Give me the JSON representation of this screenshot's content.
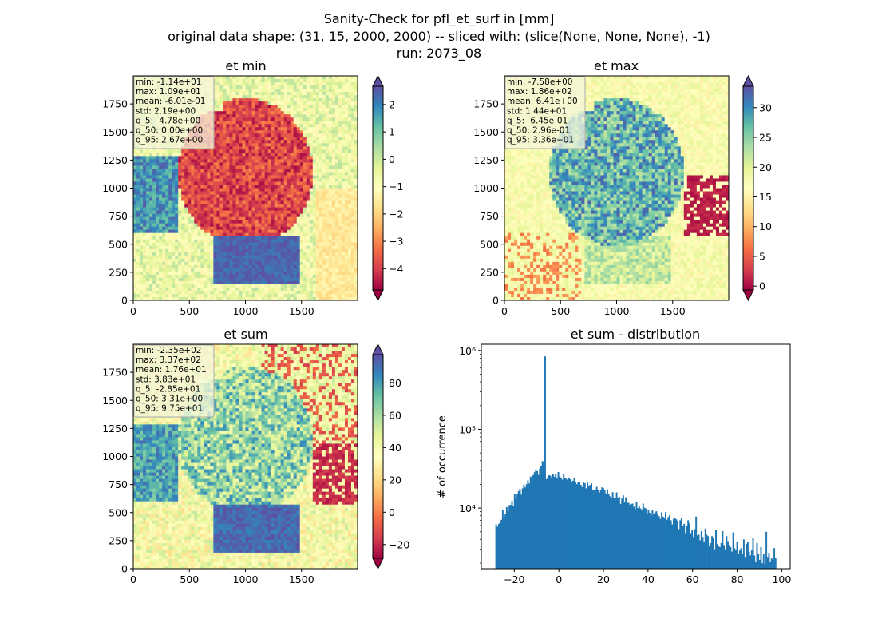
{
  "figure": {
    "title_lines": [
      "Sanity-Check for pfl_et_surf in [mm]",
      "original data shape: (31, 15, 2000, 2000) -- sliced with: (slice(None, None, None), -1)",
      "run: 2073_08"
    ]
  },
  "colormap": {
    "name": "Spectral",
    "stops": [
      "#9e0142",
      "#d53e4f",
      "#f46d43",
      "#fdae61",
      "#fee08b",
      "#ffffbf",
      "#e6f598",
      "#abdda4",
      "#66c2a5",
      "#3288bd",
      "#5e4fa2"
    ]
  },
  "bar_color": "#1f77b4",
  "panels": [
    {
      "id": "et-min",
      "title": "et min",
      "x_ticks": [
        "0",
        "500",
        "1000",
        "1500"
      ],
      "y_ticks": [
        "0",
        "250",
        "500",
        "750",
        "1000",
        "1250",
        "1500",
        "1750"
      ],
      "colorbar": {
        "ticks": [
          "2",
          "1",
          "0",
          "−1",
          "−2",
          "−3",
          "−4"
        ],
        "vmin": -4.78,
        "vmax": 2.67,
        "extend": "both"
      },
      "stats": [
        "min: -1.14e+01",
        "max: 1.09e+01",
        "mean: -6.01e-01",
        "std: 2.19e+00",
        "q_5: -4.78e+00",
        "q_50: 0.00e+00",
        "q_95: 2.67e+00"
      ]
    },
    {
      "id": "et-max",
      "title": "et max",
      "x_ticks": [
        "0",
        "500",
        "1000",
        "1500"
      ],
      "y_ticks": [
        "0",
        "250",
        "500",
        "750",
        "1000",
        "1250",
        "1500",
        "1750"
      ],
      "colorbar": {
        "ticks": [
          "30",
          "25",
          "20",
          "15",
          "10",
          "5",
          "0"
        ],
        "vmin": -0.645,
        "vmax": 33.6,
        "extend": "both"
      },
      "stats": [
        "min: -7.58e+00",
        "max: 1.86e+02",
        "mean: 6.41e+00",
        "std: 1.44e+01",
        "q_5: -6.45e-01",
        "q_50: 2.96e-01",
        "q_95: 3.36e+01"
      ]
    },
    {
      "id": "et-sum",
      "title": "et sum",
      "x_ticks": [
        "0",
        "500",
        "1000",
        "1500"
      ],
      "y_ticks": [
        "0",
        "250",
        "500",
        "750",
        "1000",
        "1250",
        "1500",
        "1750"
      ],
      "colorbar": {
        "ticks": [
          "80",
          "60",
          "40",
          "20",
          "0",
          "−20"
        ],
        "vmin": -28.5,
        "vmax": 97.5,
        "extend": "both"
      },
      "stats": [
        "min: -2.35e+02",
        "max: 3.37e+02",
        "mean: 1.76e+01",
        "std: 3.83e+01",
        "q_5: -2.85e+01",
        "q_50: 3.31e+00",
        "q_95: 9.75e+01"
      ]
    }
  ],
  "chart_data": {
    "type": "bar",
    "title": "et sum - distribution",
    "xlabel": "",
    "ylabel": "# of occurrence",
    "yscale": "log",
    "xlim": [
      -34.8,
      103.8
    ],
    "ylim": [
      1700,
      1200000
    ],
    "x_ticks": [
      "−20",
      "0",
      "20",
      "40",
      "60",
      "80",
      "100"
    ],
    "y_ticks": [
      "10⁴",
      "10⁵",
      "10⁶"
    ],
    "bin_range": [
      -28.5,
      97.5
    ],
    "counts": [
      6200,
      5800,
      6300,
      6500,
      7100,
      9500,
      7700,
      8400,
      10300,
      9100,
      10900,
      11000,
      12300,
      10600,
      14900,
      12900,
      15000,
      16400,
      17500,
      14800,
      17800,
      19700,
      18300,
      20100,
      22500,
      20500,
      25100,
      23800,
      26100,
      28500,
      30600,
      29400,
      26400,
      31800,
      34000,
      39500,
      37600,
      842000,
      23200,
      24500,
      26100,
      25600,
      24000,
      27300,
      25000,
      26900,
      23700,
      28700,
      25100,
      24400,
      23000,
      27300,
      24200,
      23500,
      22700,
      24400,
      23200,
      21400,
      22200,
      23900,
      21600,
      20100,
      21600,
      21400,
      19700,
      18500,
      21100,
      20700,
      17800,
      21000,
      19100,
      19700,
      20600,
      17100,
      16900,
      17300,
      18600,
      16900,
      15700,
      16800,
      18300,
      17800,
      16700,
      15300,
      17300,
      15100,
      14100,
      13600,
      15900,
      13500,
      13600,
      15800,
      13500,
      13900,
      11300,
      13200,
      14500,
      12100,
      13700,
      11600,
      11700,
      11100,
      11300,
      11400,
      10400,
      9700,
      12000,
      10000,
      10500,
      9900,
      9400,
      11400,
      10100,
      9900,
      8300,
      9400,
      8700,
      8100,
      9400,
      8400,
      8800,
      9100,
      8400,
      7900,
      7300,
      8800,
      7800,
      7500,
      8900,
      7100,
      7700,
      8100,
      7000,
      6200,
      7300,
      7400,
      7200,
      6900,
      5400,
      7000,
      7500,
      6000,
      6300,
      4800,
      5900,
      7000,
      6400,
      4800,
      5300,
      4300,
      5400,
      7800,
      4500,
      4600,
      3900,
      5100,
      4300,
      3700,
      5500,
      4600,
      4400,
      3300,
      3600,
      4400,
      4200,
      3000,
      5300,
      3500,
      3300,
      3200,
      3600,
      5100,
      3400,
      3000,
      4400,
      3800,
      3400,
      3200,
      2800,
      4900,
      3100,
      2900,
      3700,
      2600,
      2900,
      3100,
      2600,
      4000,
      2400,
      3500,
      3700,
      2800,
      2500,
      2900,
      4200,
      2500,
      2100,
      3600,
      2600,
      2200,
      3200,
      2000,
      2600,
      1950,
      5000,
      2400,
      2700,
      2100,
      2300,
      2200,
      3100,
      2300
    ]
  }
}
